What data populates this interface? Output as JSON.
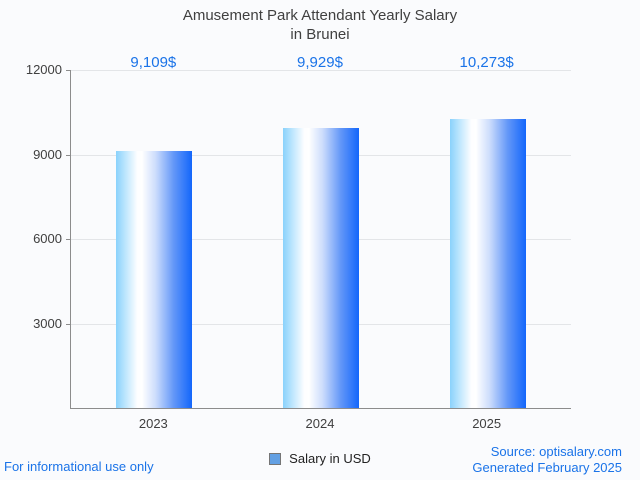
{
  "title": {
    "line1": "Amusement Park Attendant Yearly Salary",
    "line2": "in Brunei"
  },
  "chart_data": {
    "type": "bar",
    "title": "Amusement Park Attendant Yearly Salary in Brunei",
    "categories": [
      "2023",
      "2024",
      "2025"
    ],
    "values": [
      9109,
      9929,
      10273
    ],
    "value_labels": [
      "9,109$",
      "9,929$",
      "10,273$"
    ],
    "xlabel": "",
    "ylabel": "",
    "ylim": [
      0,
      12000
    ],
    "yticks": [
      12000,
      9000,
      6000,
      3000
    ],
    "grid": true,
    "legend_entries": [
      "Salary in USD"
    ],
    "legend_position": "bottom"
  },
  "legend": {
    "label": "Salary in USD",
    "swatch_color": "#63a0e3"
  },
  "footer": {
    "left": "For informational use only",
    "source": "Source: optisalary.com",
    "generated": "Generated February 2025"
  },
  "colors": {
    "background": "#fafbfd",
    "title_text": "#404040",
    "axis_text": "#3f3f3f",
    "value_label_text": "#1a73e8",
    "footer_text": "#1a73e8",
    "gridline": "#e3e5e8",
    "axis_line": "#8c8c8c",
    "bar_gradient_left": "#8ad2fc",
    "bar_gradient_middle": "#ffffff",
    "bar_gradient_right": "#1366fb"
  }
}
